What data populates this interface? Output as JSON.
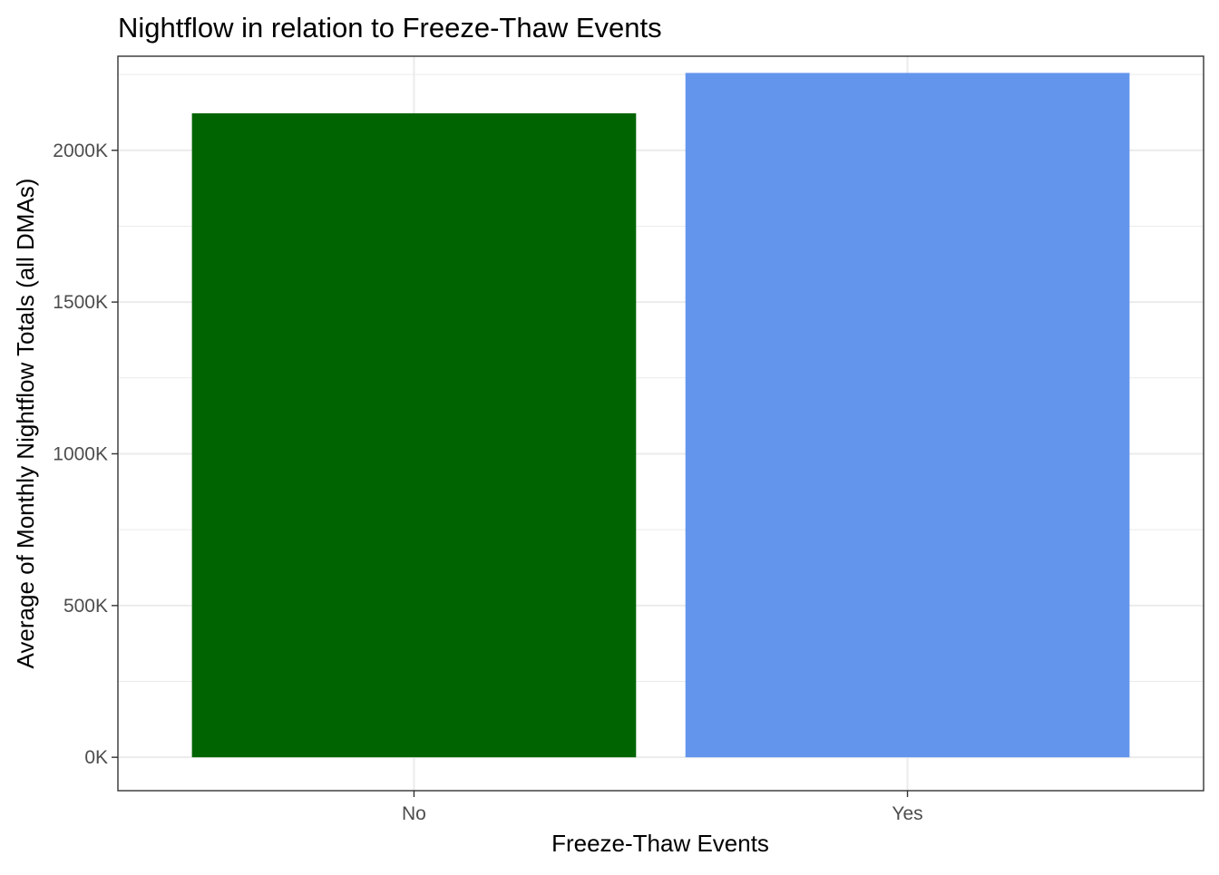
{
  "chart_data": {
    "type": "bar",
    "title": "Nightflow in relation to Freeze-Thaw Events",
    "xlabel": "Freeze-Thaw Events",
    "ylabel": "Average of Monthly Nightflow Totals (all DMAs)",
    "categories": [
      "No",
      "Yes"
    ],
    "values": [
      2122000,
      2255000
    ],
    "bar_colors": [
      "#006400",
      "#6495ED"
    ],
    "ylim": [
      -110000,
      2310000
    ],
    "y_ticks": [
      0,
      500000,
      1000000,
      1500000,
      2000000
    ],
    "y_tick_labels": [
      "0K",
      "500K",
      "1000K",
      "1500K",
      "2000K"
    ],
    "y_minor_ticks": [
      250000,
      750000,
      1250000,
      1750000,
      2250000
    ],
    "grid": true,
    "legend": "none"
  }
}
